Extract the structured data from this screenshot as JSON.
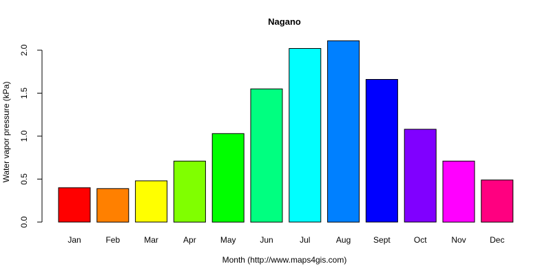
{
  "chart_data": {
    "type": "bar",
    "title": "Nagano",
    "xlabel": "Month (http://www.maps4gis.com)",
    "ylabel": "Water vapor pressure (kPa)",
    "categories": [
      "Jan",
      "Feb",
      "Mar",
      "Apr",
      "May",
      "Jun",
      "Jul",
      "Aug",
      "Sept",
      "Oct",
      "Nov",
      "Dec"
    ],
    "values": [
      0.4,
      0.39,
      0.48,
      0.71,
      1.03,
      1.55,
      2.02,
      2.11,
      1.66,
      1.08,
      0.71,
      0.49
    ],
    "colors": [
      "#FF0000",
      "#FF8000",
      "#FFFF00",
      "#80FF00",
      "#00FF00",
      "#00FF80",
      "#00FFFF",
      "#0080FF",
      "#0000FF",
      "#8000FF",
      "#FF00FF",
      "#FF0080"
    ],
    "ylim": [
      0,
      2.0
    ],
    "yticks": [
      "0.0",
      "0.5",
      "1.0",
      "1.5",
      "2.0"
    ],
    "grid": false,
    "legend": "none"
  }
}
